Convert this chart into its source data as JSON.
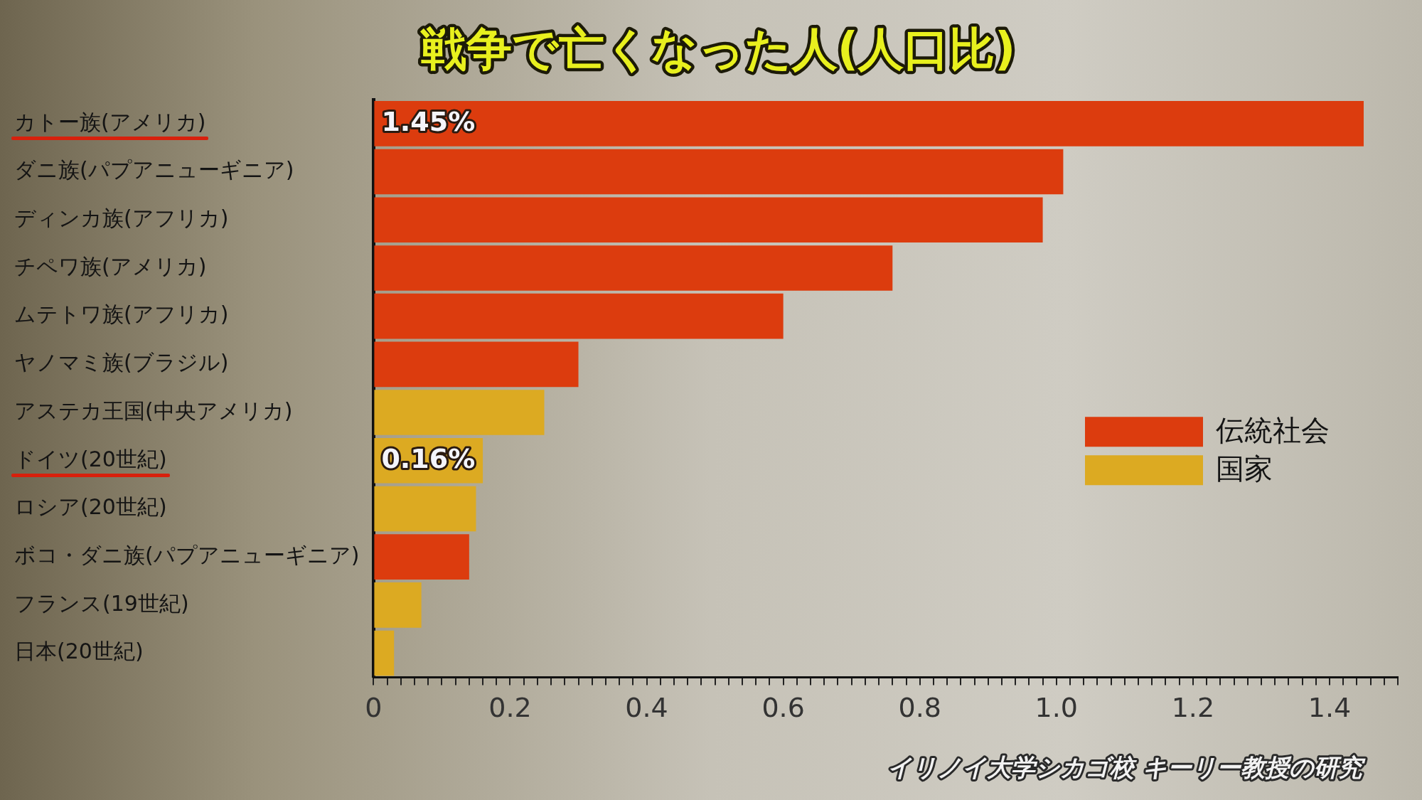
{
  "chart_data": {
    "type": "bar",
    "orientation": "horizontal",
    "stacked": true,
    "title": "戦争で亡くなった人(人口比)",
    "categories": [
      "カトー族(アメリカ)",
      "ダニ族(パプアニューギニア)",
      "ディンカ族(アフリカ)",
      "チペワ族(アメリカ)",
      "ムテトワ族(アフリカ)",
      "ヤノマミ族(ブラジル)",
      "アステカ王国(中央アメリカ)",
      "ドイツ(20世紀)",
      "ロシア(20世紀)",
      "ボコ・ダニ族(パプアニューギニア)",
      "フランス(19世紀)",
      "日本(20世紀)"
    ],
    "series": [
      {
        "name": "伝統社会",
        "color": "#dc3c0e",
        "values": [
          1.45,
          1.01,
          0.98,
          0.76,
          0.6,
          0.3,
          null,
          null,
          null,
          0.14,
          null,
          null
        ],
        "value_labels": [
          "1.45%",
          null,
          null,
          null,
          null,
          null,
          null,
          null,
          null,
          null,
          null,
          null
        ]
      },
      {
        "name": "国家",
        "color": "#dcaa22",
        "values": [
          null,
          null,
          null,
          null,
          null,
          null,
          0.25,
          0.16,
          0.15,
          null,
          0.07,
          0.03
        ],
        "value_labels": [
          null,
          null,
          null,
          null,
          null,
          null,
          null,
          "0.16%",
          null,
          null,
          null,
          null
        ]
      }
    ],
    "xlim": [
      0,
      1.5
    ],
    "xticks": [
      0,
      {
        "value": 0.02,
        "label": null
      },
      {
        "value": 0.04,
        "label": null
      },
      {
        "value": 0.06,
        "label": null
      },
      {
        "value": 0.08,
        "label": null
      },
      {
        "value": 0.1,
        "label": null
      },
      {
        "value": 0.12,
        "label": null
      },
      {
        "value": 0.14,
        "label": null
      },
      {
        "value": 0.16,
        "label": null
      },
      {
        "value": 0.18,
        "label": null
      },
      0.2,
      {
        "value": 0.22,
        "label": null
      },
      {
        "value": 0.24,
        "label": null
      },
      {
        "value": 0.26,
        "label": null
      },
      {
        "value": 0.28,
        "label": null
      },
      {
        "value": 0.3,
        "label": null
      },
      {
        "value": 0.32,
        "label": null
      },
      {
        "value": 0.34,
        "label": null
      },
      {
        "value": 0.36,
        "label": null
      },
      {
        "value": 0.38,
        "label": null
      },
      0.4,
      {
        "value": 0.42,
        "label": null
      },
      {
        "value": 0.44,
        "label": null
      },
      {
        "value": 0.46,
        "label": null
      },
      {
        "value": 0.48,
        "label": null
      },
      {
        "value": 0.5,
        "label": null
      },
      {
        "value": 0.52,
        "label": null
      },
      {
        "value": 0.54,
        "label": null
      },
      {
        "value": 0.56,
        "label": null
      },
      {
        "value": 0.58,
        "label": null
      },
      0.6,
      {
        "value": 0.62,
        "label": null
      },
      {
        "value": 0.64,
        "label": null
      },
      {
        "value": 0.66,
        "label": null
      },
      {
        "value": 0.68,
        "label": null
      },
      {
        "value": 0.7,
        "label": null
      },
      {
        "value": 0.72,
        "label": null
      },
      {
        "value": 0.74,
        "label": null
      },
      {
        "value": 0.76,
        "label": null
      },
      {
        "value": 0.78,
        "label": null
      },
      0.8,
      {
        "value": 0.82,
        "label": null
      },
      {
        "value": 0.84,
        "label": null
      },
      {
        "value": 0.86,
        "label": null
      },
      {
        "value": 0.88,
        "label": null
      },
      {
        "value": 0.9,
        "label": null
      },
      {
        "value": 0.92,
        "label": null
      },
      {
        "value": 0.94,
        "label": null
      },
      {
        "value": 0.96,
        "label": null
      },
      {
        "value": 0.98,
        "label": null
      },
      {
        "value": 1,
        "label": "1.0"
      },
      {
        "value": 1.02,
        "label": null
      },
      {
        "value": 1.04,
        "label": null
      },
      {
        "value": 1.06,
        "label": null
      },
      {
        "value": 1.08,
        "label": null
      },
      {
        "value": 1.1,
        "label": null
      },
      {
        "value": 1.12,
        "label": null
      },
      {
        "value": 1.14,
        "label": null
      },
      {
        "value": 1.16,
        "label": null
      },
      {
        "value": 1.18,
        "label": null
      },
      1.2,
      {
        "value": 1.22,
        "label": null
      },
      {
        "value": 1.24,
        "label": null
      },
      {
        "value": 1.26,
        "label": null
      },
      {
        "value": 1.28,
        "label": null
      },
      {
        "value": 1.3,
        "label": null
      },
      {
        "value": 1.32,
        "label": null
      },
      {
        "value": 1.34,
        "label": null
      },
      {
        "value": 1.36,
        "label": null
      },
      {
        "value": 1.38,
        "label": null
      },
      1.4,
      {
        "value": 1.42,
        "label": null
      },
      {
        "value": 1.44,
        "label": null
      },
      {
        "value": 1.46,
        "label": null
      },
      {
        "value": 1.48,
        "label": null
      },
      {
        "value": 1.5,
        "label": null
      }
    ],
    "legend": "right",
    "annotations": [
      "イリノイ大学シカゴ校 キーリー教授の研究"
    ]
  }
}
